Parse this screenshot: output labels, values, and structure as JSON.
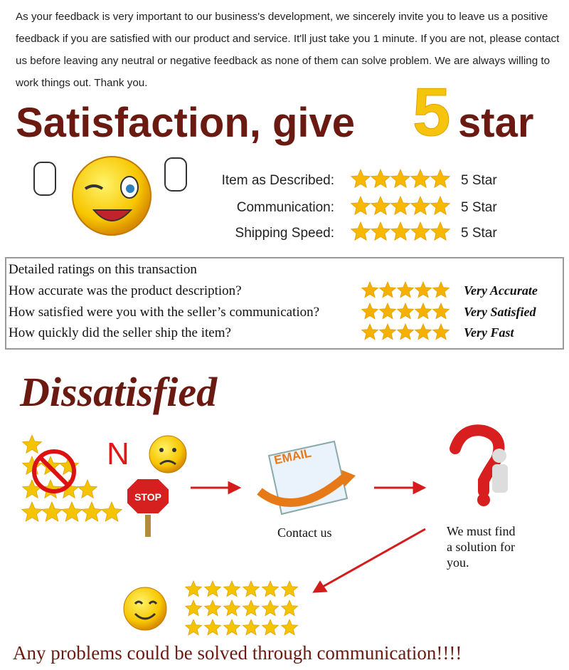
{
  "header": {
    "intro": "As your feedback is very important to our business's development, we sincerely invite you to leave us a positive feedback if you are satisfied with our product and service. It'll just take you 1 minute. If you are not, please contact us before leaving any neutral or negative feedback as none of them can solve problem. We are always willing to work things out. Thank you.",
    "title_start": "Satisfaction, give",
    "title_number": "5",
    "title_end": "star"
  },
  "ratings": [
    {
      "label": "Item as Described:",
      "score": "5 Star"
    },
    {
      "label": "Communication:",
      "score": "5 Star"
    },
    {
      "label": "Shipping Speed:",
      "score": "5 Star"
    }
  ],
  "detailed": {
    "title": "Detailed ratings on this transaction",
    "rows": [
      {
        "question": "How accurate was the product description?",
        "rating": "Very Accurate"
      },
      {
        "question": "How satisfied were you with the seller’s communication?",
        "rating": "Very Satisfied"
      },
      {
        "question": "How quickly did the seller ship the item?",
        "rating": "Very Fast"
      }
    ]
  },
  "dissatisfied": {
    "title": "Dissatisfied",
    "no_letter": "N",
    "stop_sign": "STOP",
    "email_label": "EMAIL",
    "contact": "Contact us",
    "solution_lines": [
      "We must find",
      "a solution for",
      "you."
    ]
  },
  "footer": "Any problems could be solved through communication!!!!"
}
